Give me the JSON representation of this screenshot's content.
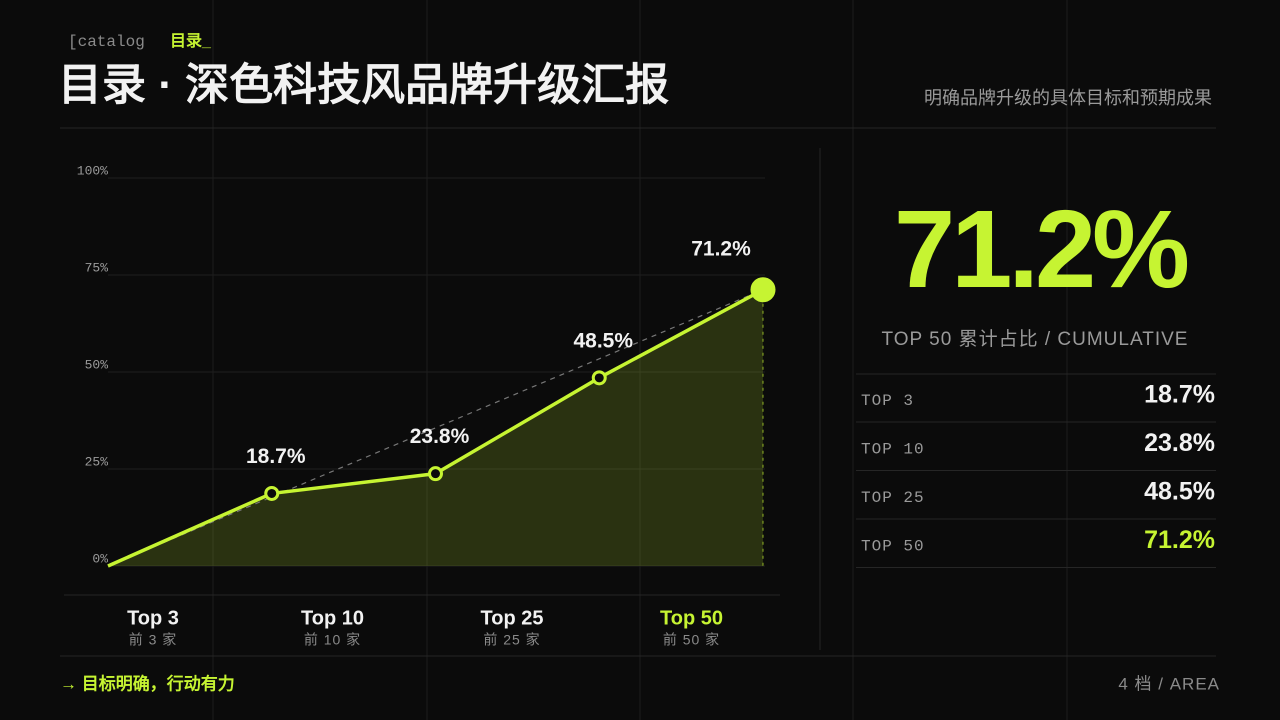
{
  "header": {
    "eyebrow": "[catalog",
    "eyebrow_accent": "目录_",
    "title": "目录 · 深色科技风品牌升级汇报",
    "subtitle": "明确品牌升级的具体目标和预期成果"
  },
  "chart_data": {
    "type": "line",
    "categories": [
      null,
      "Top 3",
      "Top 10",
      "Top 25",
      "Top 50"
    ],
    "category_sublabels": [
      null,
      "前 3 家",
      "前 10 家",
      "前 25 家",
      "前 50 家"
    ],
    "values": [
      0,
      18.7,
      23.8,
      48.5,
      71.2
    ],
    "value_labels": [
      null,
      "18.7%",
      "23.8%",
      "48.5%",
      "71.2%"
    ],
    "color": "#c6f432",
    "ylim": [
      0,
      100
    ],
    "yticks": [
      {
        "value": 0,
        "label": "0%"
      },
      {
        "value": 25,
        "label": "25%"
      },
      {
        "value": 50,
        "label": "50%"
      },
      {
        "value": 75,
        "label": "75%"
      },
      {
        "value": 100,
        "label": "100%"
      }
    ],
    "grid": true,
    "area": true
  },
  "summary": {
    "caption": "TOP 50  累计占比  / CUMULATIVE",
    "rows": [
      "TOP 3",
      "TOP 10",
      "TOP 25",
      "TOP 50"
    ]
  },
  "footer": {
    "note": "→ 目标明确，行动有力",
    "page": "4 档 / AREA"
  }
}
